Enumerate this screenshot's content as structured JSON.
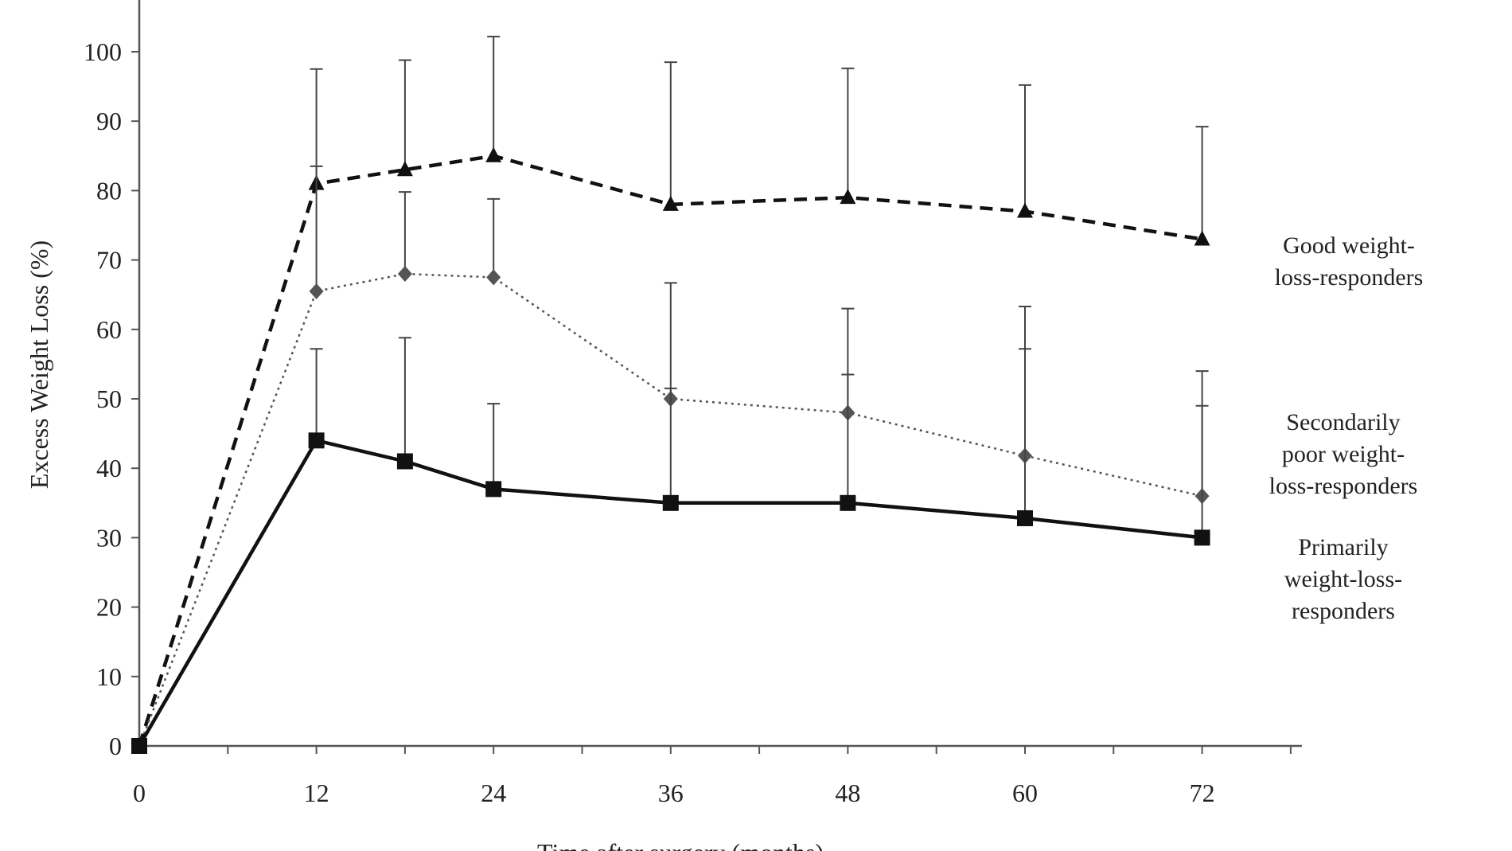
{
  "chart_data": {
    "type": "line",
    "title": "",
    "xlabel": "Time after surgery (months)",
    "ylabel": "Excess Weight Loss (%)",
    "xlim": [
      0,
      78
    ],
    "ylim": [
      0,
      100
    ],
    "x_ticks": [
      0,
      12,
      24,
      36,
      48,
      60,
      72
    ],
    "x_tick_labels": [
      "0",
      "12",
      "24",
      "36",
      "48",
      "60",
      "72"
    ],
    "x_minor_ticks": [
      6,
      12,
      18,
      24,
      30,
      36,
      42,
      48,
      54,
      60,
      66,
      72,
      78
    ],
    "y_ticks": [
      0,
      10,
      20,
      30,
      40,
      50,
      60,
      70,
      80,
      90,
      100
    ],
    "y_tick_labels": [
      "0",
      "10",
      "20",
      "30",
      "40",
      "50",
      "60",
      "70",
      "80",
      "90",
      "100"
    ],
    "grid": false,
    "legend": "inline-right",
    "series": [
      {
        "name": "Good weight-loss-responders",
        "label_lines": [
          "Good weight-",
          "loss-responders"
        ],
        "style": "dashed",
        "marker": "triangle",
        "color": "#111111",
        "x": [
          0,
          12,
          18,
          24,
          36,
          48,
          60,
          72
        ],
        "y": [
          0,
          81,
          83,
          85,
          78,
          79,
          77,
          73
        ],
        "error_upper": [
          0,
          97.5,
          98.8,
          102.2,
          98.5,
          97.6,
          95.2,
          89.2
        ]
      },
      {
        "name": "Secondarily poor weight-loss-responders",
        "label_lines": [
          "Secondarily",
          "poor  weight-",
          "loss-responders"
        ],
        "style": "dotted",
        "marker": "diamond",
        "color": "#555555",
        "x": [
          0,
          12,
          18,
          24,
          36,
          48,
          60,
          72
        ],
        "y": [
          0,
          65.5,
          68,
          67.5,
          50,
          48,
          41.8,
          36
        ],
        "error_upper": [
          0,
          83.5,
          79.8,
          78.8,
          66.7,
          63,
          63.3,
          54
        ]
      },
      {
        "name": "Primarily weight-loss-responders",
        "label_lines": [
          "Primarily",
          "weight-loss-",
          "responders"
        ],
        "style": "solid",
        "marker": "square",
        "color": "#111111",
        "x": [
          0,
          12,
          18,
          24,
          36,
          48,
          60,
          72
        ],
        "y": [
          0,
          44,
          41,
          37,
          35,
          35,
          32.8,
          30
        ],
        "error_upper": [
          0,
          57.2,
          58.8,
          49.3,
          51.5,
          53.5,
          57.2,
          49
        ]
      }
    ]
  }
}
